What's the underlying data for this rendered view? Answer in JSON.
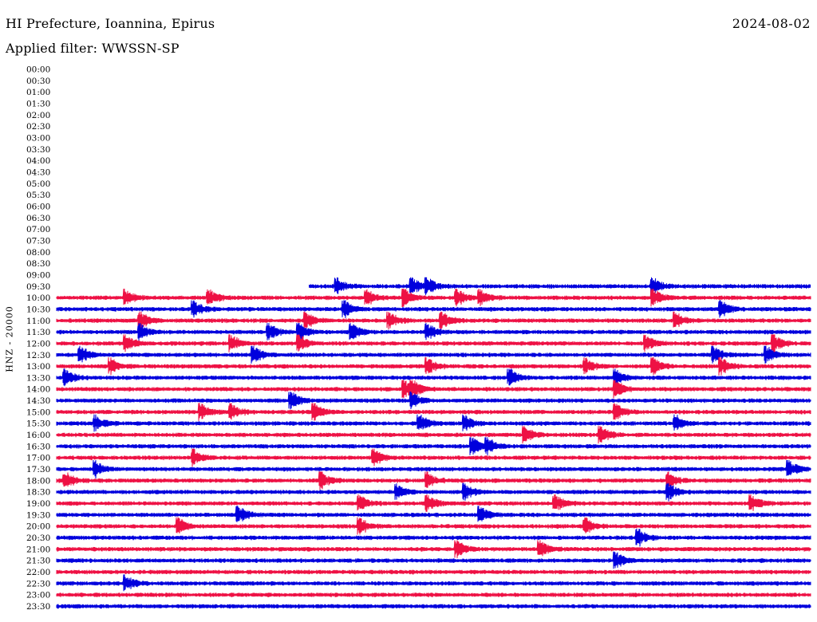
{
  "header": {
    "title": "HI Prefecture, Ioannina, Epirus",
    "date": "2024-08-02",
    "filter": "Applied filter: WWSSN-SP"
  },
  "chart_data": {
    "type": "line",
    "title": "HI Prefecture, Ioannina, Epirus",
    "ylabel": "HNZ - 20000",
    "categories": [
      "00:00",
      "00:30",
      "01:00",
      "01:30",
      "02:00",
      "02:30",
      "03:00",
      "03:30",
      "04:00",
      "04:30",
      "05:00",
      "05:30",
      "06:00",
      "06:30",
      "07:00",
      "07:30",
      "08:00",
      "08:30",
      "09:00",
      "09:30",
      "10:00",
      "10:30",
      "11:00",
      "11:30",
      "12:00",
      "12:30",
      "13:00",
      "13:30",
      "14:00",
      "14:30",
      "15:00",
      "15:30",
      "16:00",
      "16:30",
      "17:00",
      "17:30",
      "18:00",
      "18:30",
      "19:00",
      "19:30",
      "20:00",
      "20:30",
      "21:00",
      "21:30",
      "22:00",
      "22:30",
      "23:00",
      "23:30"
    ],
    "colors": [
      "#ee1144",
      "#0000dd"
    ],
    "data_start_fraction": 0.335,
    "events": {
      "09:30": [
        0.37,
        0.47,
        0.49,
        0.79
      ],
      "10:00": [
        0.09,
        0.2,
        0.41,
        0.46,
        0.53,
        0.56,
        0.79
      ],
      "10:30": [
        0.18,
        0.38,
        0.88
      ],
      "11:00": [
        0.11,
        0.33,
        0.44,
        0.51,
        0.82
      ],
      "11:30": [
        0.11,
        0.28,
        0.32,
        0.39,
        0.49
      ],
      "12:00": [
        0.09,
        0.23,
        0.32,
        0.78,
        0.95
      ],
      "12:30": [
        0.03,
        0.26,
        0.87,
        0.94
      ],
      "13:00": [
        0.07,
        0.49,
        0.7,
        0.79,
        0.88
      ],
      "13:30": [
        0.01,
        0.6,
        0.74
      ],
      "14:00": [
        0.46,
        0.47,
        0.74
      ],
      "14:30": [
        0.31,
        0.47
      ],
      "15:00": [
        0.19,
        0.23,
        0.34,
        0.74
      ],
      "15:30": [
        0.05,
        0.48,
        0.54,
        0.82
      ],
      "16:00": [
        0.62,
        0.72
      ],
      "16:30": [
        0.55,
        0.57
      ],
      "17:00": [
        0.18,
        0.42
      ],
      "17:30": [
        0.05,
        0.97
      ],
      "18:00": [
        0.01,
        0.35,
        0.49,
        0.81
      ],
      "18:30": [
        0.45,
        0.54,
        0.81
      ],
      "19:00": [
        0.4,
        0.49,
        0.66,
        0.92
      ],
      "19:30": [
        0.24,
        0.56
      ],
      "20:00": [
        0.16,
        0.4,
        0.7
      ],
      "20:30": [
        0.77
      ],
      "21:00": [
        0.53,
        0.64
      ],
      "21:30": [
        0.74
      ],
      "22:00": [],
      "22:30": [
        0.09
      ],
      "23:00": [],
      "23:30": []
    }
  }
}
